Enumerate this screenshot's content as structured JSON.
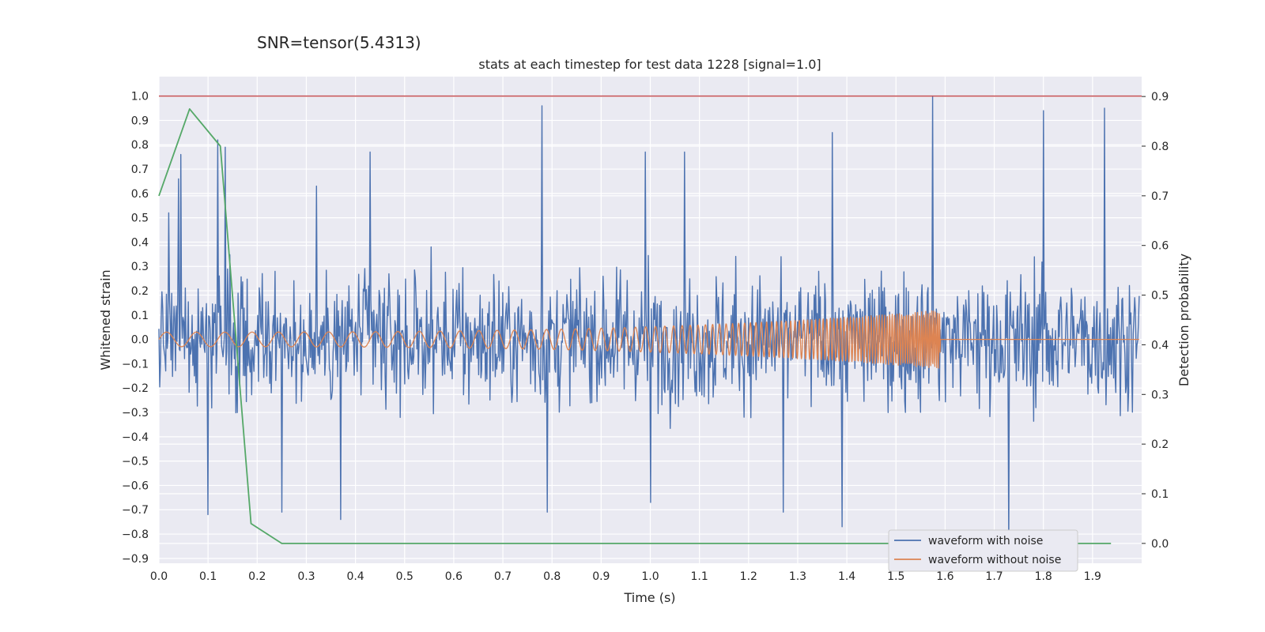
{
  "chart_data": {
    "type": "line",
    "title": "SNR=tensor(5.4313)",
    "subtitle": "stats at each timestep for test data 1228 [signal=1.0]",
    "xlabel": "Time (s)",
    "ylabel": "Whitened strain",
    "y2label": "Detection probability",
    "xlim": [
      0.0,
      2.0
    ],
    "ylim": [
      -0.92,
      1.08
    ],
    "y2lim": [
      -0.04,
      0.94
    ],
    "x_ticks": [
      "0.0",
      "0.1",
      "0.2",
      "0.3",
      "0.4",
      "0.5",
      "0.6",
      "0.7",
      "0.8",
      "0.9",
      "1.0",
      "1.1",
      "1.2",
      "1.3",
      "1.4",
      "1.5",
      "1.6",
      "1.7",
      "1.8",
      "1.9"
    ],
    "y_ticks": [
      "1.0",
      "0.9",
      "0.8",
      "0.7",
      "0.6",
      "0.5",
      "0.4",
      "0.3",
      "0.2",
      "0.1",
      "0.0",
      "−0.1",
      "−0.2",
      "−0.3",
      "−0.4",
      "−0.5",
      "−0.6",
      "−0.7",
      "−0.8",
      "−0.9"
    ],
    "y2_ticks": [
      "0.9",
      "0.8",
      "0.7",
      "0.6",
      "0.5",
      "0.4",
      "0.3",
      "0.2",
      "0.1",
      "0.0"
    ],
    "grid": true,
    "legend_position": "lower-right",
    "colors": {
      "noisy": "#4c72b0",
      "clean": "#dd8452",
      "probability": "#55a868",
      "threshold": "#c44e52",
      "background": "#eaeaf2"
    },
    "series": [
      {
        "name": "waveform with noise",
        "description": "high-frequency noisy strain, amplitude mostly within ±0.5",
        "envelope": 0.5,
        "peaks": [
          [
            0.02,
            0.52
          ],
          [
            0.04,
            0.66
          ],
          [
            0.045,
            0.76
          ],
          [
            0.12,
            0.82
          ],
          [
            0.135,
            0.79
          ],
          [
            0.43,
            0.77
          ],
          [
            0.78,
            0.96
          ],
          [
            0.32,
            0.63
          ],
          [
            0.99,
            0.77
          ],
          [
            1.07,
            0.77
          ],
          [
            1.37,
            0.85
          ],
          [
            1.575,
            1.0
          ],
          [
            1.8,
            0.94
          ],
          [
            1.925,
            0.95
          ],
          [
            0.1,
            -0.72
          ],
          [
            0.37,
            -0.74
          ],
          [
            0.25,
            -0.71
          ],
          [
            0.79,
            -0.71
          ],
          [
            1.0,
            -0.67
          ],
          [
            1.39,
            -0.77
          ],
          [
            1.73,
            -0.84
          ],
          [
            1.27,
            -0.71
          ]
        ]
      },
      {
        "name": "waveform without noise",
        "description": "chirp signal, amplitude ~0.03 rising to ~0.12 with increasing frequency, ending at t≈1.59",
        "amp_start": 0.03,
        "amp_end": 0.12,
        "end_time": 1.59
      }
    ],
    "probability": {
      "x": [
        0.0,
        0.0625,
        0.125,
        0.1875,
        0.25,
        0.3125,
        0.375,
        0.4375,
        0.5,
        0.5625,
        0.625,
        0.6875,
        0.75,
        0.8125,
        0.875,
        0.9375,
        1.0,
        1.0625,
        1.125,
        1.1875,
        1.25,
        1.3125,
        1.375,
        1.4375,
        1.5,
        1.5625,
        1.625,
        1.6875,
        1.75,
        1.8125,
        1.875,
        1.9375
      ],
      "y": [
        0.7,
        0.875,
        0.8,
        0.04,
        0.0,
        0.0,
        0.0,
        0.0,
        0.0,
        0.0,
        0.0,
        0.0,
        0.0,
        0.0,
        0.0,
        0.0,
        0.0,
        0.0,
        0.0,
        0.0,
        0.0,
        0.0,
        0.0,
        0.0,
        0.0,
        0.0,
        0.0,
        0.0,
        0.0,
        0.0,
        0.0,
        0.0
      ]
    },
    "threshold": 1.0
  }
}
